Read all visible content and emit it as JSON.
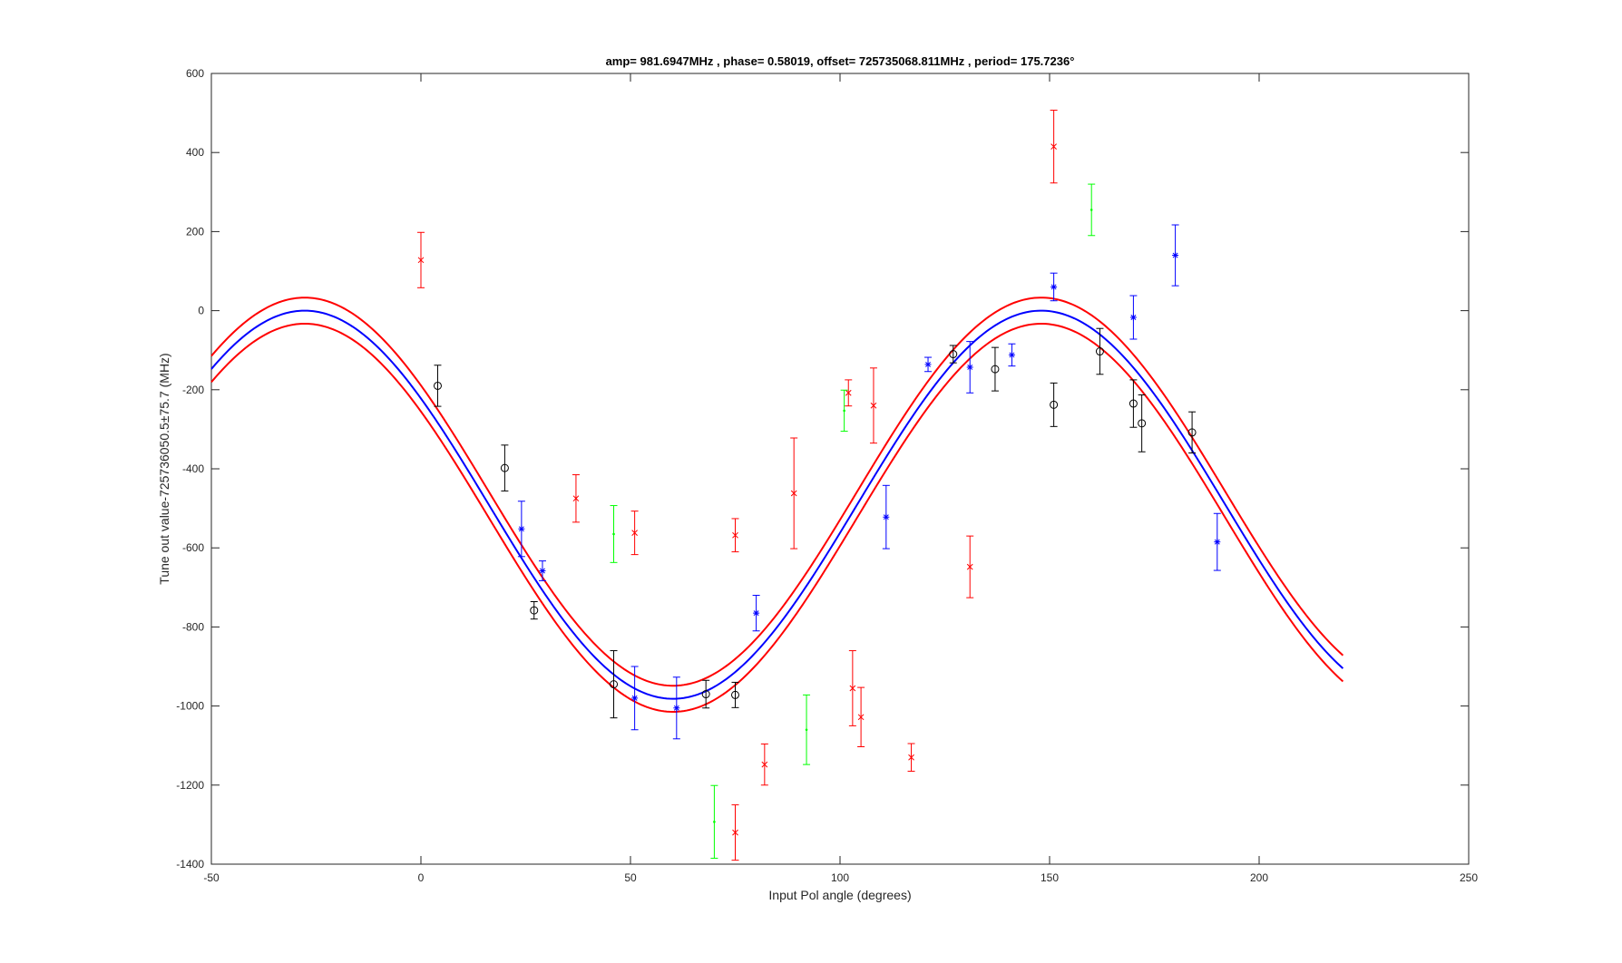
{
  "chart_data": {
    "type": "scatter",
    "title": "amp= 981.6947MHz , phase= 0.58019, offset= 725735068.811MHz , period= 175.7236°",
    "xlabel": "Input Pol angle (degrees)",
    "ylabel": "Tune out value-725736050.5±75.7 (MHz)",
    "xlim": [
      -50,
      250
    ],
    "ylim": [
      -1400,
      600
    ],
    "xticks": [
      -50,
      0,
      50,
      100,
      150,
      200,
      250
    ],
    "yticks": [
      -1400,
      -1200,
      -1000,
      -800,
      -600,
      -400,
      -200,
      0,
      200,
      400,
      600
    ],
    "xtick_labels": [
      "-50",
      "0",
      "50",
      "100",
      "150",
      "200",
      "250"
    ],
    "ytick_labels": [
      "-1400",
      "-1200",
      "-1000",
      "-800",
      "-600",
      "-400",
      "-200",
      "0",
      "200",
      "400",
      "600"
    ],
    "grid": false,
    "fit": {
      "amplitude": 490.85,
      "center": -490.85,
      "period": 175.7236,
      "peak_x": 148,
      "band_halfwidth": 33,
      "x_range": [
        -50,
        220
      ],
      "line_color": "#0000ff",
      "band_color": "#ff0000"
    },
    "series": [
      {
        "marker": "o",
        "color": "#000000",
        "points": [
          {
            "x": 4,
            "y": -190,
            "err": 52
          },
          {
            "x": 20,
            "y": -398,
            "err": 58
          },
          {
            "x": 27,
            "y": -758,
            "err": 22
          },
          {
            "x": 46,
            "y": -945,
            "err": 85
          },
          {
            "x": 68,
            "y": -970,
            "err": 35
          },
          {
            "x": 75,
            "y": -972,
            "err": 32
          },
          {
            "x": 127,
            "y": -110,
            "err": 22
          },
          {
            "x": 137,
            "y": -148,
            "err": 55
          },
          {
            "x": 151,
            "y": -238,
            "err": 55
          },
          {
            "x": 162,
            "y": -103,
            "err": 58
          },
          {
            "x": 170,
            "y": -235,
            "err": 60
          },
          {
            "x": 172,
            "y": -285,
            "err": 72
          },
          {
            "x": 184,
            "y": -308,
            "err": 52
          }
        ]
      },
      {
        "marker": "*",
        "color": "#0000ff",
        "points": [
          {
            "x": 24,
            "y": -552,
            "err": 70
          },
          {
            "x": 29,
            "y": -658,
            "err": 25
          },
          {
            "x": 51,
            "y": -980,
            "err": 80
          },
          {
            "x": 61,
            "y": -1005,
            "err": 78
          },
          {
            "x": 80,
            "y": -765,
            "err": 45
          },
          {
            "x": 111,
            "y": -522,
            "err": 80
          },
          {
            "x": 121,
            "y": -136,
            "err": 18
          },
          {
            "x": 131,
            "y": -143,
            "err": 65
          },
          {
            "x": 141,
            "y": -112,
            "err": 28
          },
          {
            "x": 151,
            "y": 60,
            "err": 35
          },
          {
            "x": 170,
            "y": -17,
            "err": 55
          },
          {
            "x": 180,
            "y": 140,
            "err": 77
          },
          {
            "x": 190,
            "y": -585,
            "err": 72
          }
        ]
      },
      {
        "marker": "x",
        "color": "#ff0000",
        "points": [
          {
            "x": 0,
            "y": 128,
            "err": 70
          },
          {
            "x": 37,
            "y": -475,
            "err": 60
          },
          {
            "x": 51,
            "y": -562,
            "err": 55
          },
          {
            "x": 75,
            "y": -568,
            "err": 42
          },
          {
            "x": 75,
            "y": -1320,
            "err": 70
          },
          {
            "x": 82,
            "y": -1148,
            "err": 52
          },
          {
            "x": 89,
            "y": -462,
            "err": 140
          },
          {
            "x": 102,
            "y": -208,
            "err": 33
          },
          {
            "x": 103,
            "y": -955,
            "err": 95
          },
          {
            "x": 105,
            "y": -1028,
            "err": 75
          },
          {
            "x": 108,
            "y": -240,
            "err": 95
          },
          {
            "x": 117,
            "y": -1130,
            "err": 35
          },
          {
            "x": 131,
            "y": -648,
            "err": 78
          },
          {
            "x": 151,
            "y": 415,
            "err": 92
          }
        ]
      },
      {
        "marker": ".",
        "color": "#00ff00",
        "points": [
          {
            "x": 46,
            "y": -565,
            "err": 72
          },
          {
            "x": 70,
            "y": -1293,
            "err": 92
          },
          {
            "x": 92,
            "y": -1060,
            "err": 88
          },
          {
            "x": 101,
            "y": -253,
            "err": 52
          },
          {
            "x": 160,
            "y": 255,
            "err": 65
          }
        ]
      }
    ]
  }
}
